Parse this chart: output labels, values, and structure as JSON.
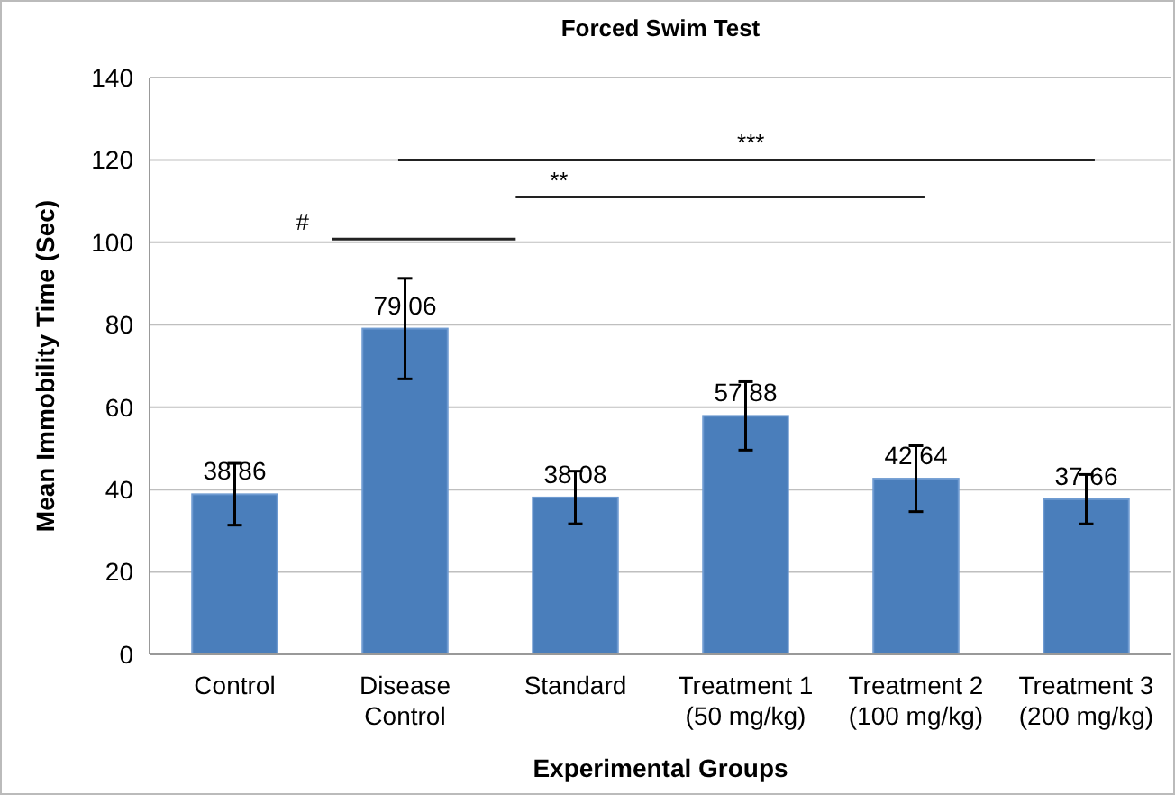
{
  "chart_data": {
    "type": "bar",
    "title": "Forced Swim Test",
    "xlabel": "Experimental Groups",
    "ylabel": "Mean Immobility Time (Sec)",
    "categories": [
      "Control",
      "Disease\nControl",
      "Standard",
      "Treatment 1\n(50 mg/kg)",
      "Treatment 2\n(100 mg/kg)",
      "Treatment 3\n(200 mg/kg)"
    ],
    "values": [
      38.86,
      79.06,
      38.08,
      57.88,
      42.64,
      37.66
    ],
    "errors": [
      7.5,
      12.2,
      6.4,
      8.3,
      8,
      6
    ],
    "color": "#4a7ebb",
    "data_labels": true,
    "grid": "y",
    "ylim": [
      0,
      140
    ],
    "yticks": [
      0,
      20,
      40,
      60,
      80,
      100,
      120,
      140
    ],
    "annotations": [
      "#",
      "**",
      "***"
    ]
  }
}
